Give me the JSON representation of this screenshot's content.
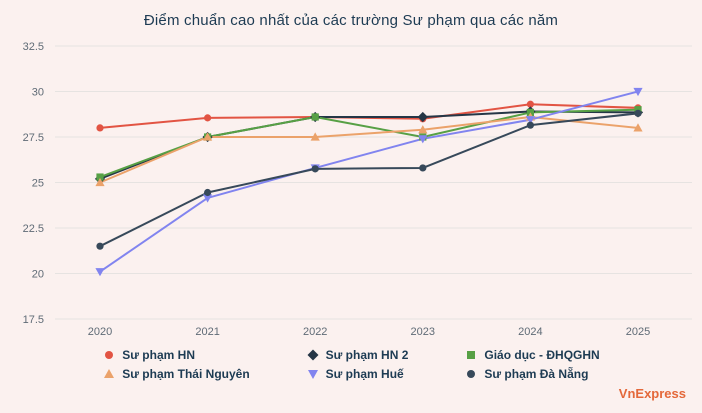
{
  "brand": "VnExpress",
  "chart_data": {
    "type": "line",
    "title": "Điểm chuẩn cao nhất của các trường Sư phạm qua các năm",
    "categories": [
      "2020",
      "2021",
      "2022",
      "2023",
      "2024",
      "2025"
    ],
    "series": [
      {
        "name": "Sư phạm HN",
        "color": "#e25443",
        "marker": "circle",
        "values": [
          28.0,
          28.55,
          28.6,
          28.5,
          29.3,
          29.1
        ]
      },
      {
        "name": "Sư phạm HN 2",
        "color": "#253646",
        "marker": "diamond",
        "values": [
          25.2,
          27.5,
          28.6,
          28.6,
          28.9,
          28.85
        ]
      },
      {
        "name": "Giáo dục - ĐHQGHN",
        "color": "#57a045",
        "marker": "square",
        "values": [
          25.3,
          27.5,
          28.6,
          27.5,
          28.85,
          29.0
        ]
      },
      {
        "name": "Sư phạm Thái Nguyên",
        "color": "#eba26a",
        "marker": "triangle",
        "values": [
          25.0,
          27.5,
          27.5,
          27.9,
          28.6,
          28.0
        ]
      },
      {
        "name": "Sư phạm Huế",
        "color": "#8184ef",
        "marker": "triangle-down",
        "values": [
          20.1,
          24.15,
          25.8,
          27.4,
          28.45,
          30.0
        ]
      },
      {
        "name": "Sư phạm Đà Nẵng",
        "color": "#37495a",
        "marker": "circle",
        "values": [
          21.5,
          24.45,
          25.75,
          25.8,
          28.15,
          28.8
        ]
      }
    ],
    "ylim": [
      17.5,
      32.5
    ],
    "ytick_step": 2.5,
    "xlabel": "",
    "ylabel": "",
    "grid": "horizontal",
    "legend_position": "bottom"
  }
}
